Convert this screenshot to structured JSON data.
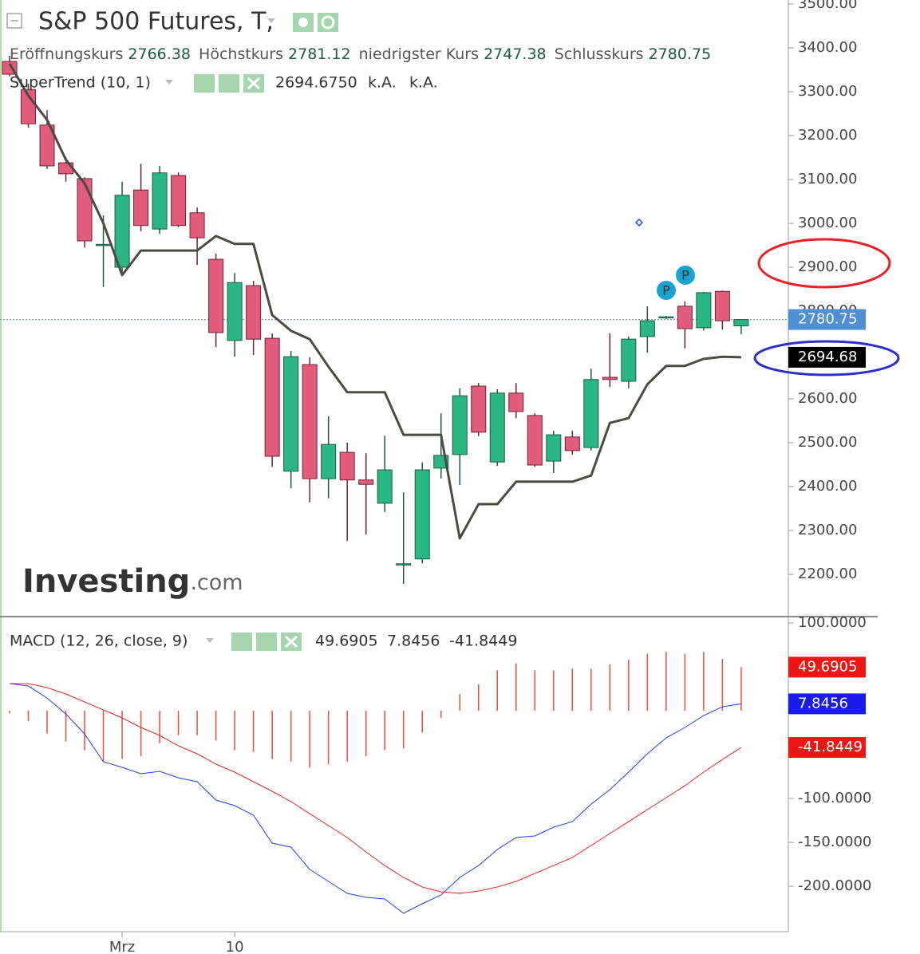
{
  "chart_data": [
    {
      "type": "candlestick",
      "title": "S&P 500 Futures, T,",
      "ohlc_labels": [
        "Eröffnungskurs",
        "Höchstkurs",
        "niedrigster Kurs",
        "Schlusskurs"
      ],
      "categories": [
        null,
        null,
        null,
        null,
        null,
        null,
        "Mrz",
        null,
        null,
        null,
        null,
        null,
        "10",
        null,
        null,
        null,
        null,
        null,
        null,
        null,
        null,
        null,
        null,
        null,
        null,
        null,
        null,
        null,
        null,
        null,
        null,
        null,
        null,
        null,
        null,
        null,
        null,
        null,
        null,
        null
      ],
      "open": [
        3369,
        3305,
        3224,
        3138,
        3102,
        2950,
        2900,
        3076,
        2987,
        3109,
        3024,
        2918,
        2733,
        2858,
        2738,
        2435,
        2678,
        2418,
        2478,
        2415,
        2362,
        2222,
        2235,
        2442,
        2473,
        2629,
        2456,
        2613,
        2562,
        2458,
        2513,
        2489,
        2649,
        2640,
        2742,
        2785,
        2811,
        2762,
        2845,
        2766.38
      ],
      "high": [
        3382,
        3318,
        3258,
        3151,
        3105,
        3018,
        3095,
        3136,
        3131,
        3116,
        3036,
        2931,
        2887,
        2869,
        2749,
        2709,
        2695,
        2560,
        2500,
        2476,
        2516,
        2387,
        2455,
        2567,
        2624,
        2636,
        2622,
        2636,
        2567,
        2527,
        2527,
        2669,
        2749,
        2742,
        2811,
        2789,
        2822,
        2844,
        2847,
        2781.12
      ],
      "low": [
        3335,
        3218,
        3124,
        3095,
        2945,
        2855,
        2882,
        2982,
        2976,
        2991,
        2905,
        2718,
        2696,
        2700,
        2445,
        2396,
        2364,
        2373,
        2276,
        2291,
        2342,
        2178,
        2225,
        2418,
        2404,
        2515,
        2447,
        2556,
        2445,
        2431,
        2473,
        2482,
        2627,
        2624,
        2705,
        2782,
        2715,
        2756,
        2758,
        2747.38
      ],
      "close": [
        3340,
        3227,
        3131,
        3113,
        2960,
        2952,
        3064,
        2995,
        3115,
        2995,
        2967,
        2751,
        2865,
        2736,
        2469,
        2696,
        2418,
        2496,
        2415,
        2405,
        2438,
        2224,
        2438,
        2471,
        2607,
        2524,
        2613,
        2571,
        2449,
        2518,
        2482,
        2644,
        2644,
        2736,
        2778,
        2787,
        2760,
        2842,
        2778,
        2780.75
      ],
      "up_color": "#2bb784",
      "down_color": "#e25d7b",
      "last_price_color": "#4f8fd4",
      "overlays": [
        {
          "name": "SuperTrend (10, 1)",
          "color": "#4b4b42",
          "values": [
            3364,
            3291,
            3236,
            3145,
            3091,
            3000,
            2882,
            2938,
            2938,
            2938,
            2938,
            2971,
            2953,
            2953,
            2791,
            2755,
            2736,
            2673,
            2615,
            2615,
            2615,
            2518,
            2518,
            2518,
            2282,
            2360,
            2360,
            2411,
            2411,
            2411,
            2411,
            2425,
            2545,
            2556,
            2633,
            2675,
            2675,
            2691,
            2696,
            2694.675
          ],
          "last_label": "2694.6750",
          "axis_label": "2694.68",
          "extra_labels": [
            "k.A.",
            "k.A."
          ]
        }
      ],
      "ylim": [
        2103.6,
        3509.1
      ],
      "yticks": [
        {
          "value": 2200,
          "label": "2200.00"
        },
        {
          "value": 2300,
          "label": "2300.00"
        },
        {
          "value": 2400,
          "label": "2400.00"
        },
        {
          "value": 2500,
          "label": "2500.00"
        },
        {
          "value": 2600,
          "label": "2600.00"
        },
        {
          "value": 2700,
          "label": "2700.00"
        },
        {
          "value": 2800,
          "label": "2800.00"
        },
        {
          "value": 2900,
          "label": "2900.00"
        },
        {
          "value": 3000,
          "label": "3000.00"
        },
        {
          "value": 3100,
          "label": "3100.00"
        },
        {
          "value": 3200,
          "label": "3200.00"
        },
        {
          "value": 3300,
          "label": "3300.00"
        },
        {
          "value": 3400,
          "label": "3400.00"
        },
        {
          "value": 3500,
          "label": "3500.00"
        }
      ],
      "annotations": [
        "P",
        "P"
      ],
      "watermark": {
        "brand": "Investing",
        "suffix": ".com"
      }
    },
    {
      "type": "macd",
      "title": "MACD (12, 26, close, 9)",
      "series": [
        {
          "kind": "histogram",
          "color": "#e4503a",
          "values": [
            -3,
            -12,
            -26,
            -35,
            -45,
            -58,
            -55,
            -52,
            -37,
            -28,
            -28,
            -34,
            -45,
            -47,
            -55,
            -58,
            -65,
            -61,
            -58,
            -52,
            -45,
            -43,
            -25,
            -8,
            19,
            30,
            46,
            54,
            46,
            46,
            48,
            48,
            53,
            58,
            65,
            67,
            65,
            67,
            59,
            49.6905
          ]
        },
        {
          "kind": "line",
          "color": "#1f3fe0",
          "values": [
            30.9,
            28.2,
            14.5,
            -3.6,
            -26.4,
            -58.2,
            -64.5,
            -71.8,
            -69.1,
            -76.4,
            -80.9,
            -101.8,
            -108.2,
            -119.1,
            -150.9,
            -155.5,
            -180.9,
            -194.5,
            -208.2,
            -212.7,
            -214.5,
            -230.9,
            -220,
            -210,
            -190,
            -176.4,
            -158.2,
            -144.5,
            -142.7,
            -132.7,
            -126.4,
            -106.4,
            -90,
            -70,
            -49.1,
            -30.9,
            -19.1,
            -5.5,
            4.5,
            7.8456
          ]
        },
        {
          "kind": "line",
          "color": "#e3262a",
          "values": [
            30.9,
            30.9,
            26.4,
            19.1,
            10,
            0.9,
            -8.2,
            -19.1,
            -28.2,
            -40,
            -49.1,
            -60.9,
            -70,
            -80.9,
            -91.8,
            -103.6,
            -117.3,
            -130.9,
            -144.5,
            -160.9,
            -176.4,
            -190,
            -200.9,
            -206.4,
            -208.2,
            -205.5,
            -200.9,
            -194.5,
            -185.5,
            -176.4,
            -167.3,
            -153.6,
            -140,
            -126.4,
            -112.7,
            -99.1,
            -85.5,
            -70,
            -55.5,
            -41.8449
          ]
        }
      ],
      "ylim": [
        -251.8,
        107.3
      ],
      "yticks": [
        {
          "value": 100,
          "label": "100.0000"
        },
        {
          "value": -100,
          "label": "-100.0000"
        },
        {
          "value": -150,
          "label": "-150.0000"
        },
        {
          "value": -200,
          "label": "-200.0000"
        }
      ]
    }
  ]
}
